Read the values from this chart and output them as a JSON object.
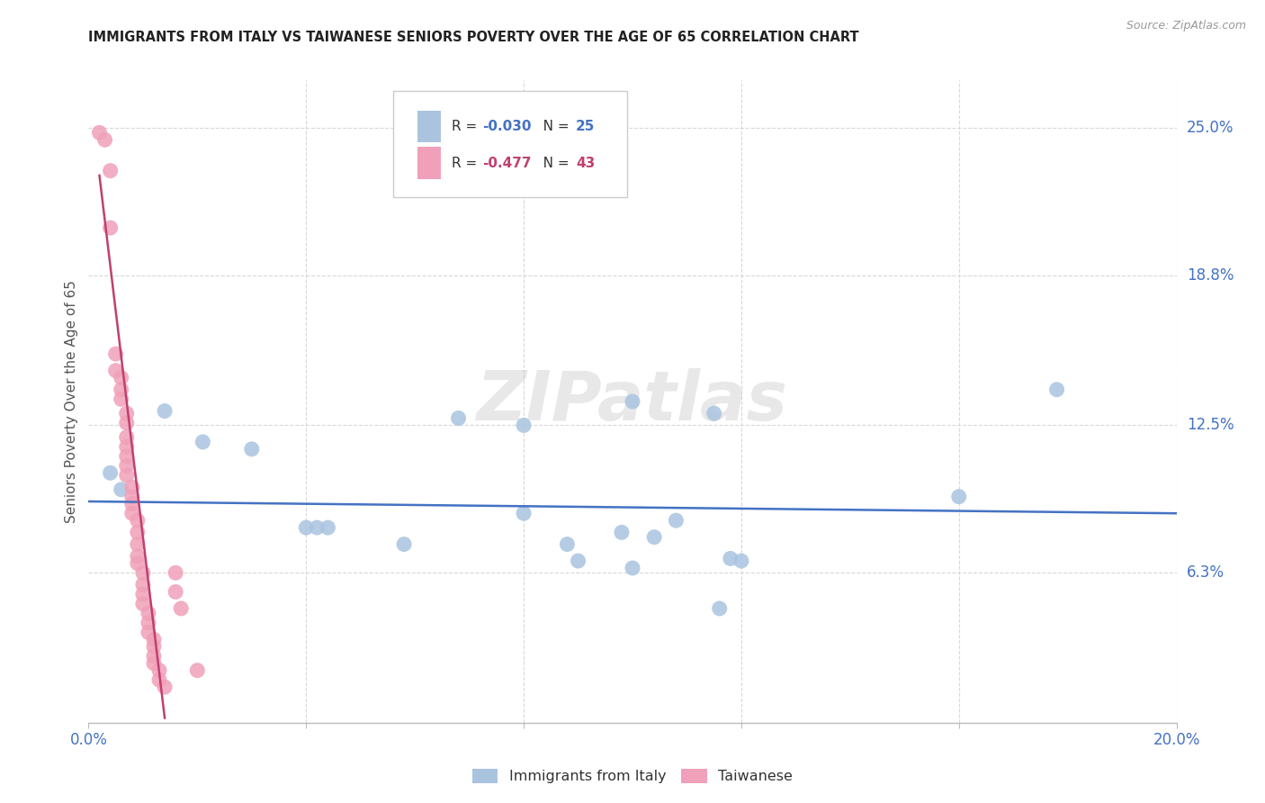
{
  "title": "IMMIGRANTS FROM ITALY VS TAIWANESE SENIORS POVERTY OVER THE AGE OF 65 CORRELATION CHART",
  "source": "Source: ZipAtlas.com",
  "ylabel": "Seniors Poverty Over the Age of 65",
  "xlim": [
    0.0,
    0.2
  ],
  "ylim": [
    0.0,
    0.27
  ],
  "xticks": [
    0.0,
    0.04,
    0.08,
    0.12,
    0.16,
    0.2
  ],
  "ytick_positions": [
    0.063,
    0.125,
    0.188,
    0.25
  ],
  "ytick_labels": [
    "6.3%",
    "12.5%",
    "18.8%",
    "25.0%"
  ],
  "italy_scatter": [
    [
      0.004,
      0.105
    ],
    [
      0.006,
      0.098
    ],
    [
      0.014,
      0.131
    ],
    [
      0.021,
      0.118
    ],
    [
      0.03,
      0.115
    ],
    [
      0.04,
      0.082
    ],
    [
      0.042,
      0.082
    ],
    [
      0.044,
      0.082
    ],
    [
      0.058,
      0.075
    ],
    [
      0.068,
      0.128
    ],
    [
      0.08,
      0.125
    ],
    [
      0.08,
      0.088
    ],
    [
      0.088,
      0.075
    ],
    [
      0.09,
      0.068
    ],
    [
      0.098,
      0.08
    ],
    [
      0.1,
      0.135
    ],
    [
      0.1,
      0.065
    ],
    [
      0.104,
      0.078
    ],
    [
      0.108,
      0.085
    ],
    [
      0.115,
      0.13
    ],
    [
      0.116,
      0.048
    ],
    [
      0.118,
      0.069
    ],
    [
      0.12,
      0.068
    ],
    [
      0.16,
      0.095
    ],
    [
      0.178,
      0.14
    ]
  ],
  "taiwan_scatter": [
    [
      0.002,
      0.248
    ],
    [
      0.003,
      0.245
    ],
    [
      0.004,
      0.232
    ],
    [
      0.004,
      0.208
    ],
    [
      0.005,
      0.155
    ],
    [
      0.005,
      0.148
    ],
    [
      0.006,
      0.145
    ],
    [
      0.006,
      0.14
    ],
    [
      0.006,
      0.136
    ],
    [
      0.007,
      0.13
    ],
    [
      0.007,
      0.126
    ],
    [
      0.007,
      0.12
    ],
    [
      0.007,
      0.116
    ],
    [
      0.007,
      0.112
    ],
    [
      0.007,
      0.108
    ],
    [
      0.007,
      0.104
    ],
    [
      0.008,
      0.099
    ],
    [
      0.008,
      0.095
    ],
    [
      0.008,
      0.092
    ],
    [
      0.008,
      0.088
    ],
    [
      0.009,
      0.085
    ],
    [
      0.009,
      0.08
    ],
    [
      0.009,
      0.075
    ],
    [
      0.009,
      0.07
    ],
    [
      0.009,
      0.067
    ],
    [
      0.01,
      0.063
    ],
    [
      0.01,
      0.058
    ],
    [
      0.01,
      0.054
    ],
    [
      0.01,
      0.05
    ],
    [
      0.011,
      0.046
    ],
    [
      0.011,
      0.042
    ],
    [
      0.011,
      0.038
    ],
    [
      0.012,
      0.035
    ],
    [
      0.012,
      0.032
    ],
    [
      0.012,
      0.028
    ],
    [
      0.012,
      0.025
    ],
    [
      0.013,
      0.022
    ],
    [
      0.013,
      0.018
    ],
    [
      0.014,
      0.015
    ],
    [
      0.016,
      0.063
    ],
    [
      0.016,
      0.055
    ],
    [
      0.017,
      0.048
    ],
    [
      0.02,
      0.022
    ]
  ],
  "italy_line_x": [
    0.0,
    0.2
  ],
  "italy_line_y": [
    0.093,
    0.088
  ],
  "taiwan_line_x": [
    0.002,
    0.014
  ],
  "taiwan_line_y": [
    0.23,
    0.002
  ],
  "italy_color": "#aac4e0",
  "taiwan_color": "#f0a0b8",
  "italy_line_color": "#4472c4",
  "taiwan_line_color": "#c04070",
  "scatter_size": 150,
  "watermark": "ZIPatlas",
  "background_color": "#ffffff",
  "grid_color": "#d8d8d8",
  "r1_val": "-0.030",
  "n1_val": "25",
  "r2_val": "-0.477",
  "n2_val": "43"
}
